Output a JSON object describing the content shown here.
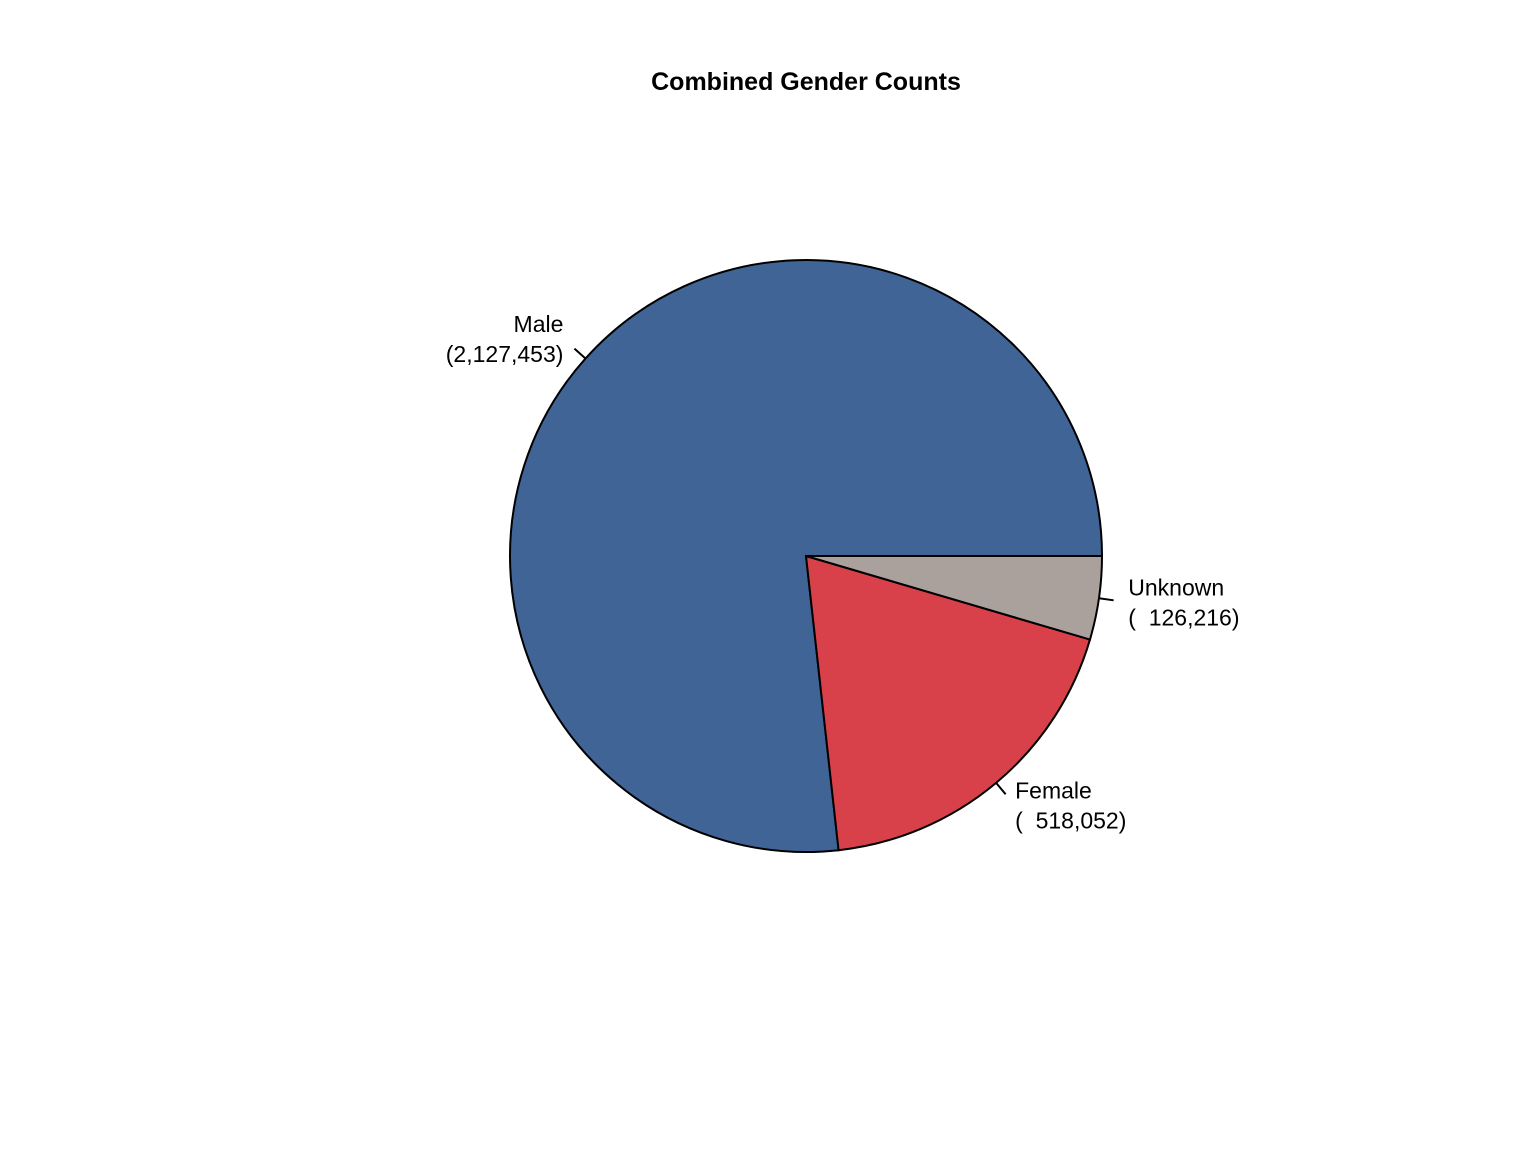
{
  "chart_data": {
    "type": "pie",
    "title": "Combined Gender Counts",
    "start": "east",
    "direction": "counterclockwise",
    "slices": [
      {
        "label": "Male",
        "value": 2127453,
        "value_label": "(2,127,453)",
        "color": "#3F6495"
      },
      {
        "label": "Female",
        "value": 518052,
        "value_label": "(  518,052)",
        "color": "#D8414A"
      },
      {
        "label": "Unknown",
        "value": 126216,
        "value_label": "(  126,216)",
        "color": "#ABA19C"
      }
    ]
  }
}
